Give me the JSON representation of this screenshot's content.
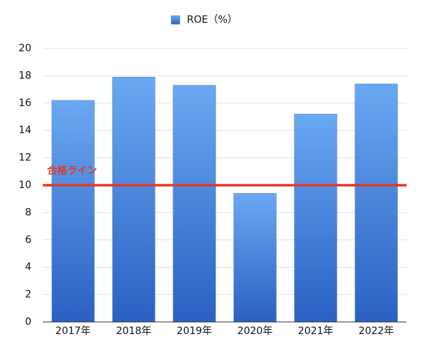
{
  "chart_data": {
    "type": "bar",
    "categories": [
      "2017年",
      "2018年",
      "2019年",
      "2020年",
      "2021年",
      "2022年"
    ],
    "series": [
      {
        "name": "ROE（%）",
        "color": "#3f7fdc",
        "gradient_colors": [
          "#6aa8f2",
          "#2b60c2"
        ],
        "values": [
          16.2,
          17.9,
          17.3,
          9.4,
          15.2,
          17.4
        ]
      }
    ],
    "ylim": [
      0,
      20
    ],
    "yticks": [
      0,
      2,
      4,
      6,
      8,
      10,
      12,
      14,
      16,
      18,
      20
    ],
    "grid": true,
    "legend": "top",
    "reference_line": {
      "value": 10,
      "label": "合格ライン",
      "color": "#e0392b"
    }
  }
}
